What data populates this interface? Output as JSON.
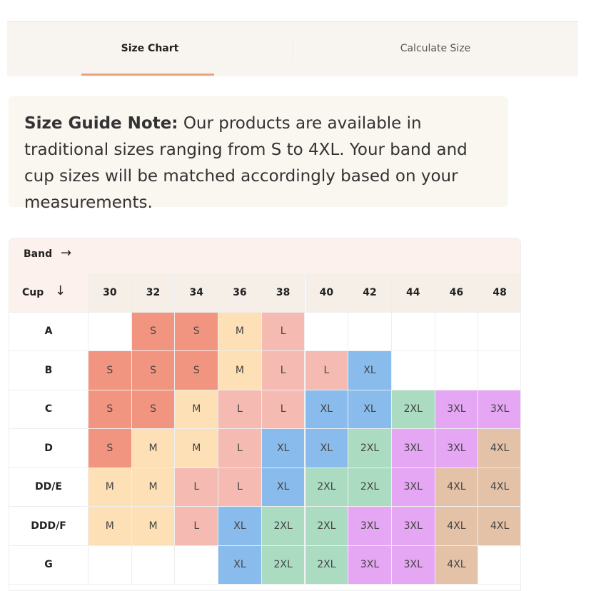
{
  "tabs": [
    {
      "label": "Size Chart",
      "active": true
    },
    {
      "label": "Calculate Size",
      "active": false
    }
  ],
  "note": {
    "lead": "Size Guide Note:",
    "text": "Our products are available in traditional sizes ranging from S to 4XL. Your band and cup sizes will be matched accordingly based on your measurements."
  },
  "table": {
    "band_label": "Band",
    "band_arrow": "→",
    "cup_label": "Cup",
    "cup_arrow": "↓",
    "bands": [
      "30",
      "32",
      "34",
      "36",
      "38",
      "40",
      "42",
      "44",
      "46",
      "48"
    ],
    "rows": [
      {
        "cup": "A",
        "cells": [
          null,
          "S",
          "S",
          "M",
          "L",
          null,
          null,
          null,
          null,
          null
        ]
      },
      {
        "cup": "B",
        "cells": [
          "S",
          "S",
          "S",
          "M",
          "L",
          "L",
          "XL",
          null,
          null,
          null
        ]
      },
      {
        "cup": "C",
        "cells": [
          "S",
          "S",
          "M",
          "L",
          "L",
          "XL",
          "XL",
          "2XL",
          "3XL",
          "3XL"
        ]
      },
      {
        "cup": "D",
        "cells": [
          "S",
          "M",
          "M",
          "L",
          "XL",
          "XL",
          "2XL",
          "3XL",
          "3XL",
          "4XL"
        ]
      },
      {
        "cup": "DD/E",
        "cells": [
          "M",
          "M",
          "L",
          "L",
          "XL",
          "2XL",
          "2XL",
          "3XL",
          "4XL",
          "4XL"
        ]
      },
      {
        "cup": "DDD/F",
        "cells": [
          "M",
          "M",
          "L",
          "XL",
          "2XL",
          "2XL",
          "3XL",
          "3XL",
          "4XL",
          "4XL"
        ]
      },
      {
        "cup": "G",
        "cells": [
          null,
          null,
          null,
          "XL",
          "2XL",
          "2XL",
          "3XL",
          "3XL",
          "4XL",
          null
        ]
      }
    ],
    "cell_colors": {
      "S": "#f29580",
      "M": "#fde0b6",
      "L": "#f5bab2",
      "XL": "#89bbec",
      "2XL": "#abdcc2",
      "3XL": "#e5a6f4",
      "4XL": "#e3c2a8"
    }
  }
}
